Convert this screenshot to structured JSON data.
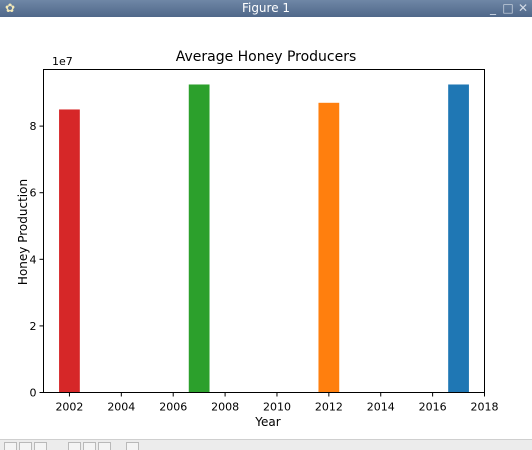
{
  "window": {
    "title": "Figure 1"
  },
  "colors": {
    "titlebar": "#5b7396",
    "axes": "#000000"
  },
  "toolbar": {
    "icons": [
      "home-icon",
      "back-icon",
      "forward-icon",
      "pan-icon",
      "zoom-icon",
      "configure-icon",
      "save-icon"
    ]
  },
  "chart_data": {
    "type": "bar",
    "title": "Average Honey Producers",
    "xlabel": "Year",
    "ylabel": "Honey Production",
    "offset_label": "1e7",
    "scale": 10000000,
    "xlim": [
      2001,
      2018
    ],
    "ylim": [
      0,
      9.7
    ],
    "xticks": [
      2002,
      2004,
      2006,
      2008,
      2010,
      2012,
      2014,
      2016,
      2018
    ],
    "yticks": [
      0,
      2,
      4,
      6,
      8
    ],
    "bar_width": 0.8,
    "grid": false,
    "bars": [
      {
        "x": 2002,
        "value": 8.5,
        "color": "#d62728"
      },
      {
        "x": 2007,
        "value": 9.25,
        "color": "#2ca02c"
      },
      {
        "x": 2012,
        "value": 8.7,
        "color": "#ff7f0e"
      },
      {
        "x": 2017,
        "value": 9.25,
        "color": "#1f77b4"
      }
    ]
  }
}
